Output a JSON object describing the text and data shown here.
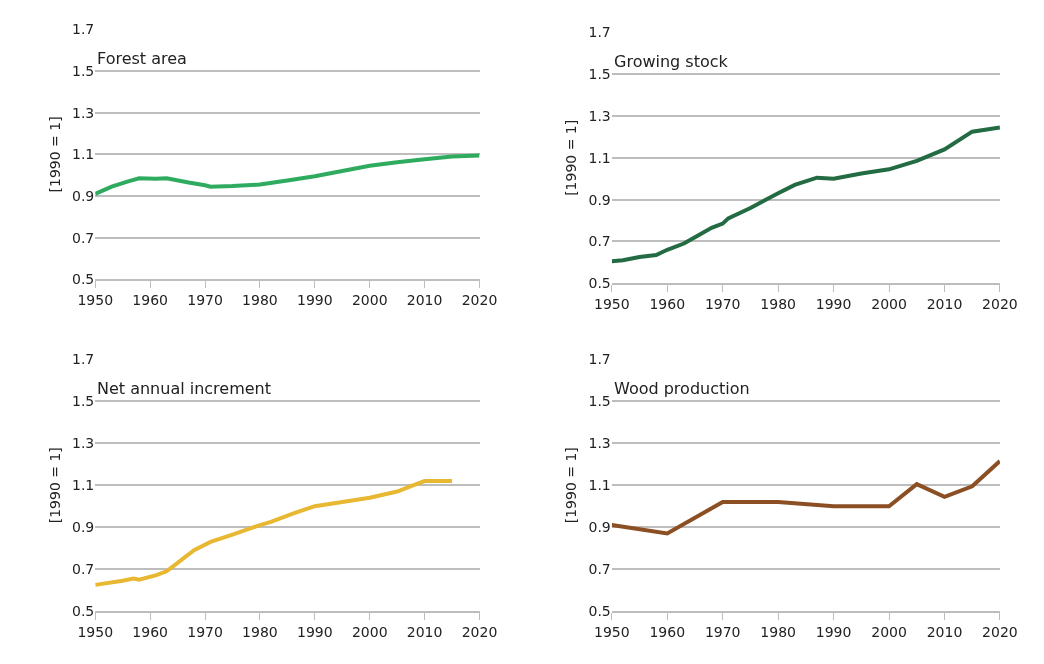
{
  "chart_data": [
    {
      "type": "line",
      "title": "Forest area",
      "ylabel": "[1990 = 1]",
      "xlim": [
        1950,
        2020
      ],
      "xticks": [
        1950,
        1960,
        1970,
        1980,
        1990,
        2000,
        2010,
        2020
      ],
      "ylim": [
        0.5,
        1.7
      ],
      "yticks": [
        0.5,
        0.7,
        0.9,
        1.1,
        1.3,
        1.5,
        1.7
      ],
      "grid": "y",
      "series": [
        {
          "color": "#2eab5e",
          "x": [
            1950,
            1953,
            1956,
            1958,
            1961,
            1963,
            1967,
            1970,
            1971,
            1975,
            1980,
            1985,
            1990,
            1995,
            2000,
            2005,
            2010,
            2015,
            2020
          ],
          "values": [
            0.91,
            0.945,
            0.97,
            0.985,
            0.983,
            0.985,
            0.965,
            0.952,
            0.945,
            0.948,
            0.955,
            0.975,
            0.995,
            1.02,
            1.045,
            1.062,
            1.077,
            1.09,
            1.095
          ]
        }
      ]
    },
    {
      "type": "line",
      "title": "Growing stock",
      "ylabel": "[1990 = 1]",
      "xlim": [
        1950,
        2020
      ],
      "xticks": [
        1950,
        1960,
        1970,
        1980,
        1990,
        2000,
        2010,
        2020
      ],
      "ylim": [
        0.5,
        1.7
      ],
      "yticks": [
        0.5,
        0.7,
        0.9,
        1.1,
        1.3,
        1.5,
        1.7
      ],
      "grid": "y",
      "series": [
        {
          "color": "#236b43",
          "x": [
            1950,
            1952,
            1955,
            1958,
            1960,
            1963,
            1965,
            1968,
            1970,
            1971,
            1975,
            1980,
            1983,
            1987,
            1990,
            1995,
            2000,
            2005,
            2010,
            2015,
            2020
          ],
          "values": [
            0.605,
            0.61,
            0.625,
            0.635,
            0.66,
            0.69,
            0.72,
            0.765,
            0.785,
            0.81,
            0.86,
            0.93,
            0.97,
            1.005,
            1.0,
            1.025,
            1.045,
            1.085,
            1.14,
            1.225,
            1.245
          ]
        }
      ]
    },
    {
      "type": "line",
      "title": "Net annual increment",
      "ylabel": "[1990 = 1]",
      "xlim": [
        1950,
        2020
      ],
      "xticks": [
        1950,
        1960,
        1970,
        1980,
        1990,
        2000,
        2010,
        2020
      ],
      "ylim": [
        0.5,
        1.7
      ],
      "yticks": [
        0.5,
        0.7,
        0.9,
        1.1,
        1.3,
        1.5,
        1.7
      ],
      "grid": "y",
      "series": [
        {
          "color": "#e8b833",
          "x": [
            1950,
            1955,
            1957,
            1958,
            1961,
            1963,
            1965,
            1968,
            1971,
            1975,
            1980,
            1982,
            1986,
            1990,
            1995,
            2000,
            2005,
            2008,
            2010,
            2015
          ],
          "values": [
            0.625,
            0.645,
            0.655,
            0.65,
            0.67,
            0.69,
            0.73,
            0.79,
            0.83,
            0.865,
            0.91,
            0.925,
            0.965,
            1.0,
            1.02,
            1.04,
            1.07,
            1.1,
            1.12,
            1.12
          ]
        }
      ]
    },
    {
      "type": "line",
      "title": "Wood production",
      "ylabel": "[1990 = 1]",
      "xlim": [
        1950,
        2020
      ],
      "xticks": [
        1950,
        1960,
        1970,
        1980,
        1990,
        2000,
        2010,
        2020
      ],
      "ylim": [
        0.5,
        1.7
      ],
      "yticks": [
        0.5,
        0.7,
        0.9,
        1.1,
        1.3,
        1.5,
        1.7
      ],
      "grid": "y",
      "series": [
        {
          "color": "#8b4f23",
          "x": [
            1950,
            1960,
            1970,
            1980,
            1990,
            2000,
            2005,
            2010,
            2015,
            2020
          ],
          "values": [
            0.91,
            0.87,
            1.02,
            1.02,
            1.0,
            1.0,
            1.105,
            1.045,
            1.095,
            1.215
          ]
        }
      ]
    }
  ]
}
